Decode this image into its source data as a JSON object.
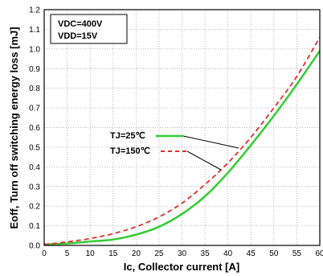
{
  "chart_data": {
    "type": "line",
    "title": "",
    "xlabel": "Ic, Collector current [A]",
    "ylabel": "Eoff, Turn off switching energy loss [mJ]",
    "xlim": [
      0,
      60
    ],
    "ylim": [
      0,
      1.2
    ],
    "x_ticks": [
      0,
      5,
      10,
      15,
      20,
      25,
      30,
      35,
      40,
      45,
      50,
      55,
      60
    ],
    "y_ticks": [
      0.0,
      0.1,
      0.2,
      0.3,
      0.4,
      0.5,
      0.6,
      0.7,
      0.8,
      0.9,
      1.0,
      1.1,
      1.2
    ],
    "grid": true,
    "conditions": [
      "VDC=400V",
      "VDD=15V"
    ],
    "series": [
      {
        "name": "TJ=25℃",
        "color": "#33cc33",
        "style": "solid",
        "x": [
          0,
          5,
          10,
          15,
          20,
          25,
          30,
          35,
          40,
          45,
          50,
          55,
          60
        ],
        "y": [
          0.005,
          0.01,
          0.02,
          0.03,
          0.055,
          0.095,
          0.16,
          0.25,
          0.37,
          0.51,
          0.66,
          0.82,
          0.99
        ]
      },
      {
        "name": "TJ=150℃",
        "color": "#e03030",
        "style": "dashed",
        "x": [
          0,
          5,
          10,
          15,
          20,
          25,
          30,
          35,
          40,
          45,
          50,
          55,
          60
        ],
        "y": [
          0.005,
          0.018,
          0.035,
          0.06,
          0.095,
          0.145,
          0.215,
          0.31,
          0.42,
          0.55,
          0.7,
          0.86,
          1.06
        ]
      }
    ]
  }
}
